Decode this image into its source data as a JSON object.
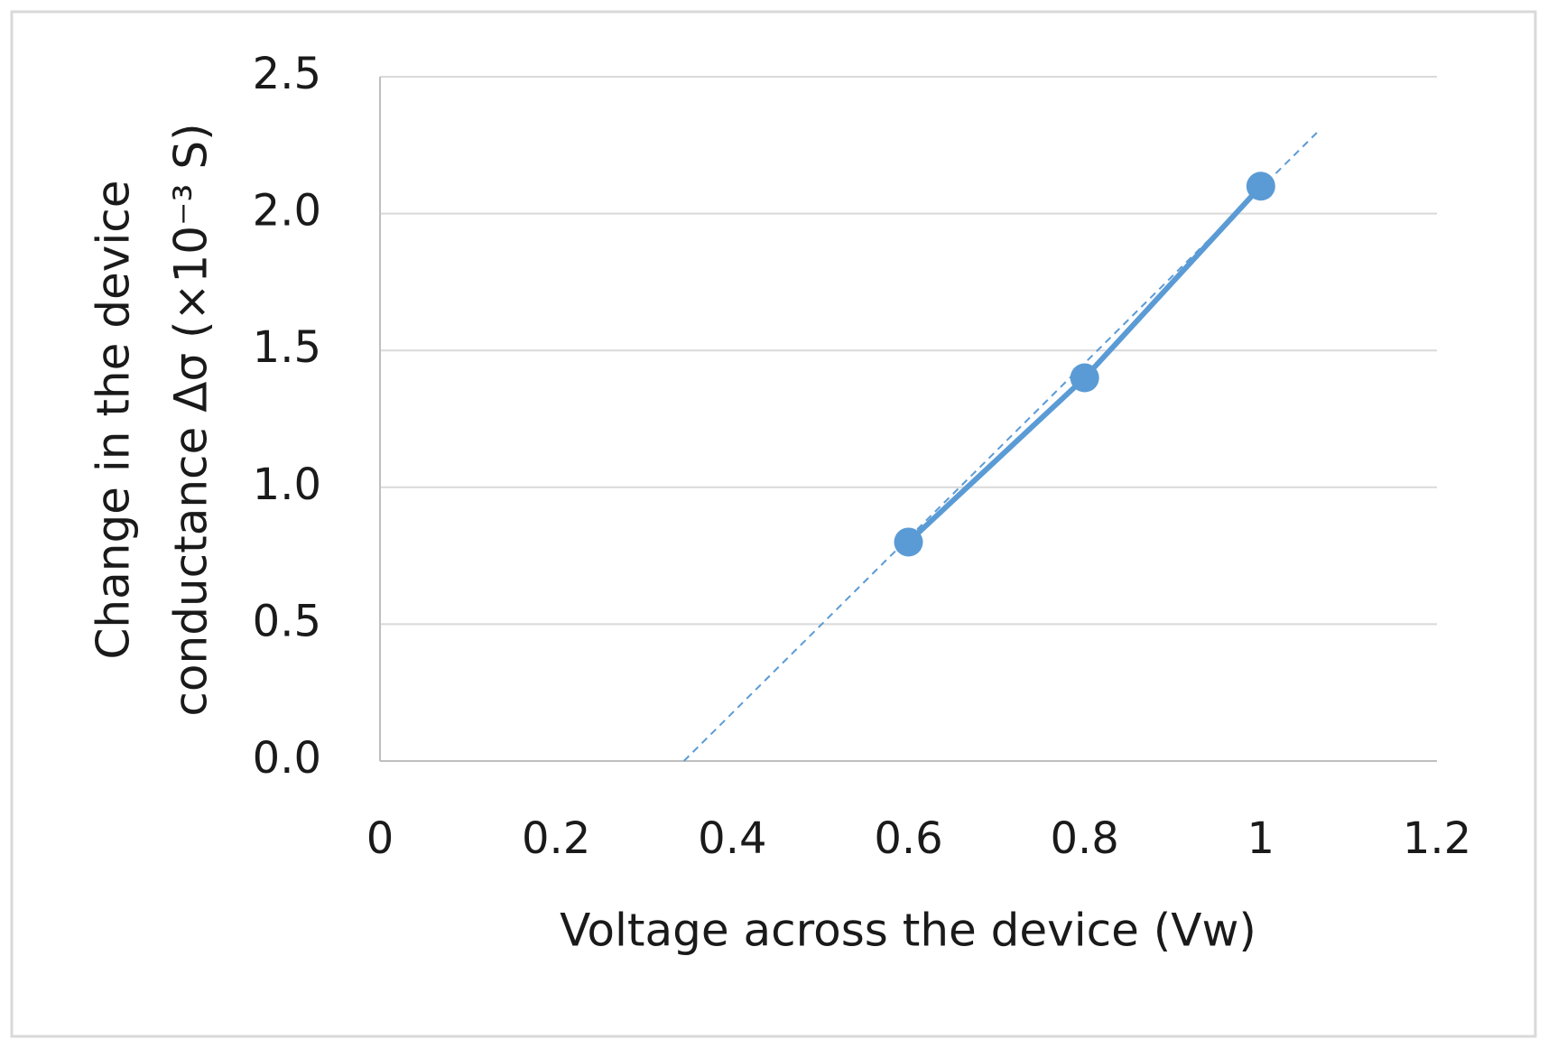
{
  "chart_data": {
    "type": "scatter",
    "x_label": "Voltage across the device (Vw)",
    "y_label": [
      "Change in the device",
      "conductance Δσ (×10⁻³ S)"
    ],
    "x": [
      0.6,
      0.8,
      1
    ],
    "values": [
      0.8,
      1.4,
      2.1
    ],
    "color": "#5b9bd5",
    "trendline": {
      "x": [
        0.345,
        1.065
      ],
      "values": [
        0,
        2.3
      ],
      "color": "#5b9bd5"
    },
    "xlim": [
      0,
      1.2
    ],
    "xticks": [
      0,
      0.2,
      0.4,
      0.6,
      0.8,
      1,
      1.2
    ],
    "ylim": [
      0,
      2.5
    ],
    "yticks": [
      {
        "value": 0,
        "label": "0.0"
      },
      0.5,
      {
        "value": 1,
        "label": "1.0"
      },
      1.5,
      {
        "value": 2,
        "label": "2.0"
      },
      2.5
    ],
    "grid": true
  }
}
